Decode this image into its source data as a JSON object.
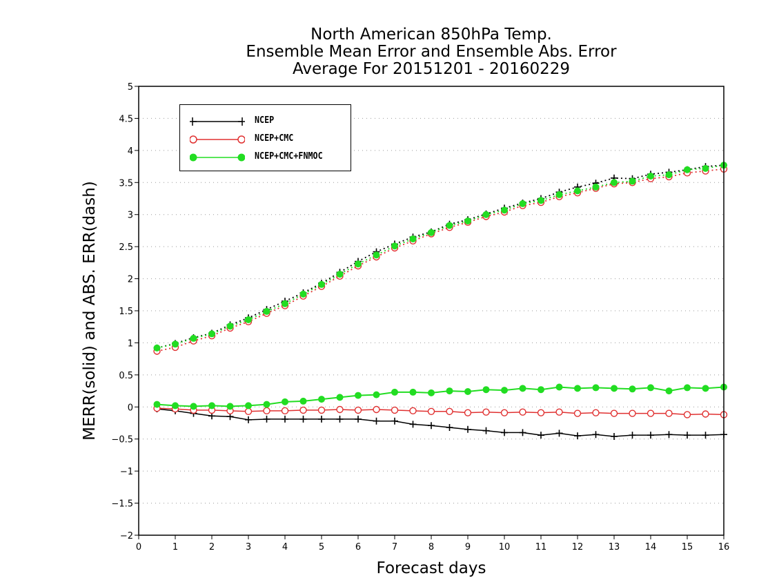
{
  "title_lines": [
    "North American 850hPa Temp.",
    "Ensemble Mean Error and Ensemble Abs. Error",
    "Average For 20151201 - 20160229"
  ],
  "chart_data": {
    "type": "line",
    "title": "North American 850hPa Temp. Ensemble Mean Error and Ensemble Abs. Error Average For 20151201 - 20160229",
    "xlabel": "Forecast days",
    "ylabel": "MERR(solid) and ABS. ERR(dash)",
    "xlim": [
      0,
      16
    ],
    "ylim": [
      -2,
      5
    ],
    "xticks": [
      "0",
      "1",
      "2",
      "3",
      "4",
      "5",
      "6",
      "7",
      "8",
      "9",
      "10",
      "11",
      "12",
      "13",
      "14",
      "15",
      "16"
    ],
    "yticks": [
      "-2",
      "-1.5",
      "-1",
      "-0.5",
      "0",
      "0.5",
      "1",
      "1.5",
      "2",
      "2.5",
      "3",
      "3.5",
      "4",
      "4.5",
      "5"
    ],
    "grid": "horizontal dotted",
    "legend_position": "top-left",
    "x": [
      0.5,
      1,
      1.5,
      2,
      2.5,
      3,
      3.5,
      4,
      4.5,
      5,
      5.5,
      6,
      6.5,
      7,
      7.5,
      8,
      8.5,
      9,
      9.5,
      10,
      10.5,
      11,
      11.5,
      12,
      12.5,
      13,
      13.5,
      14,
      14.5,
      15,
      15.5,
      16
    ],
    "series": [
      {
        "name": "NCEP",
        "color": "#000000",
        "marker": "plus",
        "merr": [
          -0.03,
          -0.06,
          -0.1,
          -0.14,
          -0.15,
          -0.2,
          -0.19,
          -0.19,
          -0.19,
          -0.19,
          -0.19,
          -0.19,
          -0.22,
          -0.22,
          -0.27,
          -0.29,
          -0.32,
          -0.35,
          -0.37,
          -0.4,
          -0.4,
          -0.44,
          -0.41,
          -0.45,
          -0.43,
          -0.46,
          -0.44,
          -0.44,
          -0.43,
          -0.44,
          -0.44,
          -0.43
        ],
        "abs_err": [
          0.92,
          0.99,
          1.08,
          1.15,
          1.28,
          1.39,
          1.52,
          1.65,
          1.78,
          1.93,
          2.1,
          2.27,
          2.42,
          2.54,
          2.65,
          2.73,
          2.85,
          2.92,
          3.01,
          3.1,
          3.18,
          3.25,
          3.35,
          3.43,
          3.49,
          3.57,
          3.56,
          3.63,
          3.66,
          3.7,
          3.75,
          3.77
        ]
      },
      {
        "name": "NCEP+CMC",
        "color": "#e03030",
        "marker": "open-circle",
        "merr": [
          -0.02,
          -0.03,
          -0.05,
          -0.05,
          -0.06,
          -0.07,
          -0.06,
          -0.06,
          -0.05,
          -0.05,
          -0.04,
          -0.05,
          -0.04,
          -0.05,
          -0.06,
          -0.07,
          -0.07,
          -0.09,
          -0.08,
          -0.09,
          -0.08,
          -0.09,
          -0.08,
          -0.1,
          -0.09,
          -0.1,
          -0.1,
          -0.1,
          -0.1,
          -0.12,
          -0.11,
          -0.12
        ],
        "abs_err": [
          0.87,
          0.93,
          1.03,
          1.11,
          1.23,
          1.33,
          1.46,
          1.58,
          1.73,
          1.88,
          2.04,
          2.2,
          2.34,
          2.48,
          2.59,
          2.7,
          2.8,
          2.88,
          2.97,
          3.04,
          3.14,
          3.19,
          3.28,
          3.34,
          3.41,
          3.48,
          3.5,
          3.56,
          3.59,
          3.65,
          3.68,
          3.71
        ]
      },
      {
        "name": "NCEP+CMC+FNMOC",
        "color": "#22dd22",
        "marker": "filled-circle",
        "merr": [
          0.04,
          0.02,
          0.01,
          0.02,
          0.01,
          0.02,
          0.04,
          0.08,
          0.09,
          0.12,
          0.15,
          0.18,
          0.19,
          0.23,
          0.23,
          0.22,
          0.25,
          0.24,
          0.27,
          0.26,
          0.29,
          0.27,
          0.31,
          0.29,
          0.3,
          0.29,
          0.28,
          0.3,
          0.25,
          0.3,
          0.29,
          0.31
        ],
        "abs_err": [
          0.92,
          0.98,
          1.07,
          1.14,
          1.26,
          1.36,
          1.49,
          1.61,
          1.76,
          1.91,
          2.07,
          2.23,
          2.37,
          2.51,
          2.62,
          2.72,
          2.83,
          2.9,
          3.0,
          3.07,
          3.17,
          3.22,
          3.31,
          3.37,
          3.43,
          3.5,
          3.52,
          3.6,
          3.62,
          3.7,
          3.72,
          3.77
        ]
      }
    ]
  }
}
